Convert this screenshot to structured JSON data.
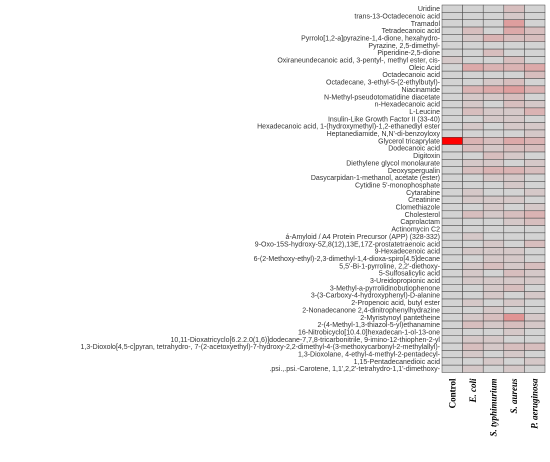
{
  "chart_data": {
    "type": "heatmap",
    "title": "",
    "xlabel": "",
    "ylabel": "",
    "grid": true,
    "legend": "none",
    "colors": {
      "base": "#d3d3d3",
      "max": "#ff0000",
      "border": "#444444"
    },
    "columns": [
      {
        "label": "Control",
        "italic": false
      },
      {
        "label": "E. coli",
        "italic": true
      },
      {
        "label": "S. typhimurium",
        "italic": true
      },
      {
        "label": "S. aureus",
        "italic": true
      },
      {
        "label": "P. aeruginosa",
        "italic": true
      }
    ],
    "rows": [
      "Uridine",
      "trans-13-Octadecenoic acid",
      "Tramadol",
      "Tetradecanoic acid",
      "Pyrrolo[1,2-a]pyrazine-1,4-dione, hexahydro-",
      "Pyrazine, 2,5-dimethyl-",
      "Piperidine-2,5-dione",
      "Oxiraneundecanoic acid, 3-pentyl-, methyl ester, cis-",
      "Oleic Acid",
      "Octadecanoic acid",
      "Octadecane, 3-ethyl-5-(2-ethylbutyl)-",
      "Niacinamide",
      "N-Methyl-pseudotomatidine diacetate",
      "n-Hexadecanoic acid",
      "L-Leucine",
      "Insulin-Like Growth Factor II (33-40)",
      "Hexadecanoic acid, 1-(hydroxymethyl)-1,2-ethanediyl ester",
      "Heptanediamide, N,N'-di-benzoyloxy",
      "Glycerol tricaprylate",
      "Dodecanoic acid",
      "Digitoxin",
      "Diethylene glycol monolaurate",
      "Deoxyspergualin",
      "Dasycarpidan-1-methanol, acetate (ester)",
      "Cytidine 5'-monophosphate",
      "Cytarabine",
      "Creatinine",
      "Clomethiazole",
      "Cholesterol",
      "Caprolactam",
      "Actinomycin C2",
      "á-Amyloid / A4 Protein Precursor (APP) (328-332)",
      "9-Oxo-15S-hydroxy-5Z,8(12),13E,17Z-prostatetraenoic acid",
      "9-Hexadecenoic acid",
      "6-(2-Methoxy-ethyl)-2,3-dimethyl-1,4-dioxa-spiro[4.5]decane",
      "5,5'-Bi-1-pyrroline, 2,2'-diethoxy-",
      "5-Sulfosalicylic acid",
      "3-Ureidopropionic acid",
      "3-Methyl-a-pyrrolidinobutiophenone",
      "3-(3-Carboxy-4-hydroxyphenyl)-D-alanine",
      "2-Propenoic acid, butyl ester",
      "2-Nonadecanone 2,4-dinitrophenylhydrazine",
      "2-Myristynoyl pantetheine",
      "2-(4-Methyl-1,3-thiazol-5-yl)ethanamine",
      "16-Nitrobicyclo[10.4.0]hexadecan-1-ol-13-one",
      "10,11-Dioxatricyclo[6.2.2.0(1,6)]dodecane-7,7,8-tricarbonitrile, 9-imino-12-thiophen-2-yl",
      "1,3-Dioxolo[4,5-c]pyran, tetrahydro-, 7-(2-acetoxyethyl)-7-hydroxy-2,2-dimethyl-4-(3-methoxycarbonyl-2-methylallyl)-",
      "1,3-Dioxolane, 4-ethyl-4-methyl-2-pentadecyl-",
      "1,15-Pentadecanedioic acid",
      ".psi.,.psi.-Carotene, 1,1',2,2'-tetrahydro-1,1'-dimethoxy-"
    ],
    "values": [
      [
        0,
        0,
        0,
        0.1,
        0
      ],
      [
        0,
        0,
        0,
        0.05,
        0
      ],
      [
        0,
        0,
        0,
        0.25,
        0
      ],
      [
        0,
        0.1,
        0,
        0.2,
        0.1
      ],
      [
        0,
        0.05,
        0.15,
        0.1,
        0.1
      ],
      [
        0,
        0,
        0,
        0,
        0
      ],
      [
        0,
        0,
        0.1,
        0,
        0
      ],
      [
        0.05,
        0,
        0,
        0.1,
        0
      ],
      [
        0,
        0.2,
        0.15,
        0.15,
        0.2
      ],
      [
        0,
        0,
        0,
        0,
        0.1
      ],
      [
        0,
        0,
        0.05,
        0.1,
        0
      ],
      [
        0,
        0.15,
        0.2,
        0.25,
        0.15
      ],
      [
        0,
        0.05,
        0.05,
        0.1,
        0
      ],
      [
        0,
        0.05,
        0,
        0.1,
        0.05
      ],
      [
        0,
        0.1,
        0.05,
        0.05,
        0.15
      ],
      [
        0,
        0,
        0.05,
        0.05,
        0
      ],
      [
        0,
        0.05,
        0,
        0.05,
        0.05
      ],
      [
        0,
        0,
        0,
        0,
        0.05
      ],
      [
        1,
        0.15,
        0.1,
        0.2,
        0.15
      ],
      [
        0,
        0.1,
        0.05,
        0.1,
        0.1
      ],
      [
        0,
        0,
        0.1,
        0.05,
        0
      ],
      [
        0,
        0.05,
        0.05,
        0,
        0.05
      ],
      [
        0,
        0.1,
        0.15,
        0.15,
        0.1
      ],
      [
        0,
        0,
        0.05,
        0.05,
        0
      ],
      [
        0,
        0,
        0,
        0.05,
        0
      ],
      [
        0,
        0.05,
        0,
        0,
        0.05
      ],
      [
        0,
        0.05,
        0.05,
        0.05,
        0
      ],
      [
        0,
        0,
        0.05,
        0,
        0.05
      ],
      [
        0,
        0.1,
        0.05,
        0.1,
        0.15
      ],
      [
        0,
        0,
        0,
        0.05,
        0.1
      ],
      [
        0,
        0,
        0,
        0,
        0
      ],
      [
        0,
        0.05,
        0,
        0,
        0
      ],
      [
        0,
        0,
        0.05,
        0,
        0.1
      ],
      [
        0,
        0.05,
        0.05,
        0.05,
        0
      ],
      [
        0,
        0,
        0.05,
        0.05,
        0
      ],
      [
        0,
        0.05,
        0.1,
        0.05,
        0.1
      ],
      [
        0,
        0.05,
        0,
        0.1,
        0.05
      ],
      [
        0,
        0.05,
        0.05,
        0.05,
        0.05
      ],
      [
        0,
        0,
        0.05,
        0.1,
        0
      ],
      [
        0,
        0,
        0.05,
        0,
        0.05
      ],
      [
        0,
        0.05,
        0,
        0.05,
        0
      ],
      [
        0,
        0,
        0.05,
        0,
        0
      ],
      [
        0,
        0.05,
        0.1,
        0.3,
        0.05
      ],
      [
        0,
        0.1,
        0.05,
        0.1,
        0.05
      ],
      [
        0,
        0,
        0,
        0.05,
        0
      ],
      [
        0,
        0.05,
        0.05,
        0,
        0
      ],
      [
        0,
        0.1,
        0.05,
        0.1,
        0.1
      ],
      [
        0,
        0.05,
        0,
        0.05,
        0
      ],
      [
        0,
        0,
        0.05,
        0,
        0.05
      ],
      [
        0,
        0.05,
        0,
        0.05,
        0
      ]
    ]
  }
}
